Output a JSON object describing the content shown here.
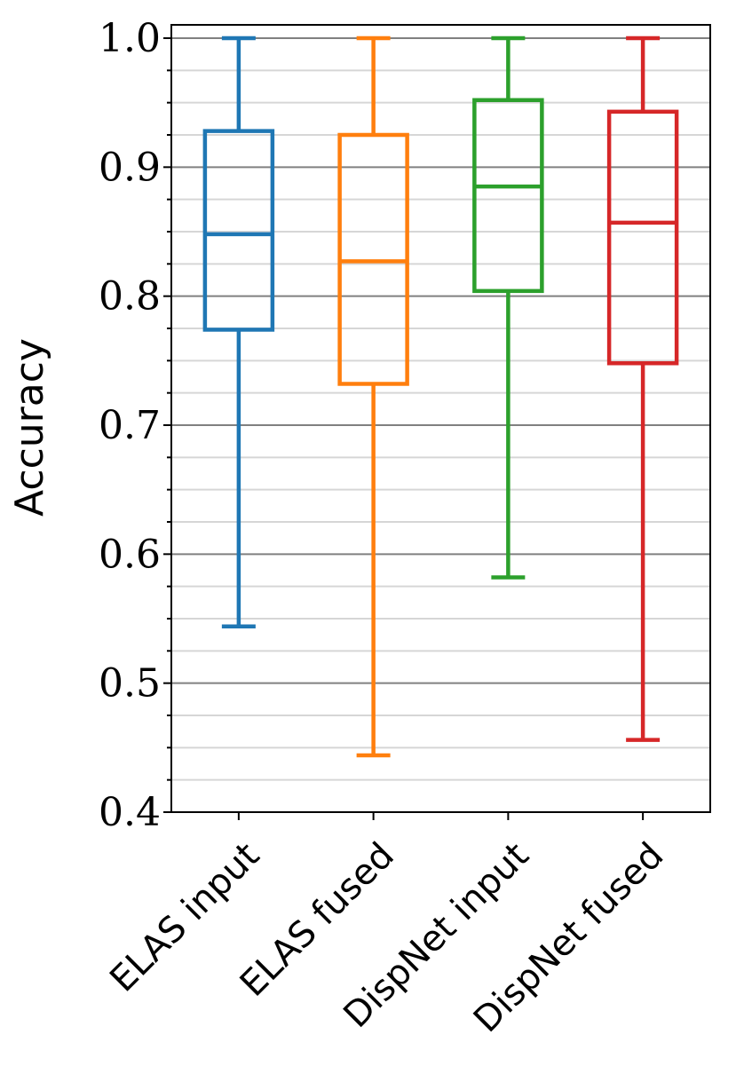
{
  "chart_data": {
    "type": "boxplot",
    "ylabel": "Accuracy",
    "xlabel": "",
    "ylim": [
      0.4,
      1.0
    ],
    "yticks": [
      "0.4",
      "0.5",
      "0.6",
      "0.7",
      "0.8",
      "0.9",
      "1.0"
    ],
    "grid": {
      "major": true,
      "minor": true,
      "axis": "y"
    },
    "categories": [
      "ELAS input",
      "ELAS fused",
      "DispNet input",
      "DispNet fused"
    ],
    "series": [
      {
        "category": "ELAS input",
        "color": "#1f77b4",
        "whisker_low": 0.544,
        "q1": 0.774,
        "median": 0.848,
        "q3": 0.928,
        "whisker_high": 1.0
      },
      {
        "category": "ELAS fused",
        "color": "#ff7f0e",
        "whisker_low": 0.444,
        "q1": 0.732,
        "median": 0.827,
        "q3": 0.925,
        "whisker_high": 1.0
      },
      {
        "category": "DispNet input",
        "color": "#2ca02c",
        "whisker_low": 0.582,
        "q1": 0.804,
        "median": 0.885,
        "q3": 0.952,
        "whisker_high": 1.0
      },
      {
        "category": "DispNet fused",
        "color": "#d62728",
        "whisker_low": 0.456,
        "q1": 0.748,
        "median": 0.857,
        "q3": 0.943,
        "whisker_high": 1.0
      }
    ]
  }
}
